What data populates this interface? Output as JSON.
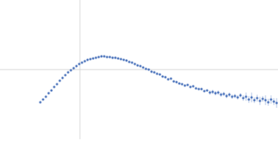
{
  "chart_data": {
    "type": "scatter",
    "x": [
      -57,
      -53,
      -49,
      -45,
      -41,
      -37,
      -33,
      -29,
      -25,
      -21,
      -17,
      -13,
      -9,
      -5,
      -1,
      3,
      7,
      11,
      15,
      19,
      23,
      27,
      31,
      35,
      39,
      43,
      47,
      51,
      55,
      59,
      63,
      67,
      71,
      75,
      79,
      83,
      87,
      91,
      95,
      99,
      103,
      107,
      111,
      115,
      119,
      123,
      127,
      131,
      135,
      139,
      143,
      147,
      151,
      155,
      159,
      163,
      167,
      171,
      175,
      179,
      183,
      187,
      191,
      195,
      199,
      203,
      207,
      211,
      215,
      219,
      223,
      227,
      231,
      235,
      239,
      243,
      247,
      251,
      255,
      259,
      263,
      267,
      271,
      275,
      279,
      283
    ],
    "values": [
      -47,
      -43,
      -39,
      -34,
      -30,
      -25,
      -21,
      -16,
      -12,
      -8,
      -4,
      -1,
      2,
      5,
      8,
      10,
      12,
      14,
      15,
      16,
      17,
      18,
      19,
      19,
      18,
      18,
      17,
      17,
      16,
      15,
      14,
      13,
      11,
      10,
      8,
      6,
      5,
      3,
      1,
      0,
      -3,
      -4,
      -6,
      -7,
      -10,
      -11,
      -14,
      -13,
      -17,
      -18,
      -20,
      -21,
      -23,
      -22,
      -25,
      -24,
      -27,
      -28,
      -28,
      -31,
      -30,
      -33,
      -32,
      -34,
      -33,
      -36,
      -35,
      -38,
      -36,
      -39,
      -38,
      -40,
      -37,
      -41,
      -39,
      -43,
      -40,
      -44,
      -41,
      -45,
      -42,
      -44,
      -47,
      -43,
      -46,
      -48
    ],
    "errors": [
      0.5,
      0.5,
      0.5,
      0.5,
      0.5,
      0.5,
      0.5,
      0.5,
      0.5,
      0.5,
      0.5,
      0.5,
      0.5,
      0.5,
      0.5,
      0.5,
      0.5,
      0.5,
      0.5,
      0.5,
      0.5,
      0.5,
      0.5,
      0.5,
      0.5,
      0.5,
      0.5,
      0.5,
      0.5,
      0.5,
      0.5,
      0.5,
      0.5,
      0.5,
      0.5,
      0.5,
      1.5,
      1.5,
      1.5,
      1.5,
      1.5,
      1.5,
      1.5,
      1.5,
      1.5,
      1.5,
      1.5,
      1.5,
      1.5,
      1.5,
      1.5,
      1.5,
      1.5,
      1.5,
      1.5,
      1.5,
      1.5,
      1.5,
      1.5,
      1.5,
      1.5,
      3,
      3,
      3,
      3,
      3,
      3,
      3,
      3,
      3,
      3,
      3,
      3,
      4,
      6,
      5,
      7,
      4,
      5,
      6,
      4,
      7,
      5,
      6,
      5,
      7
    ],
    "color": "#3a66b5",
    "error_color": "#a9bde0",
    "xlim": [
      -115,
      285
    ],
    "ylim": [
      -100,
      100
    ],
    "zero_lines": true
  }
}
